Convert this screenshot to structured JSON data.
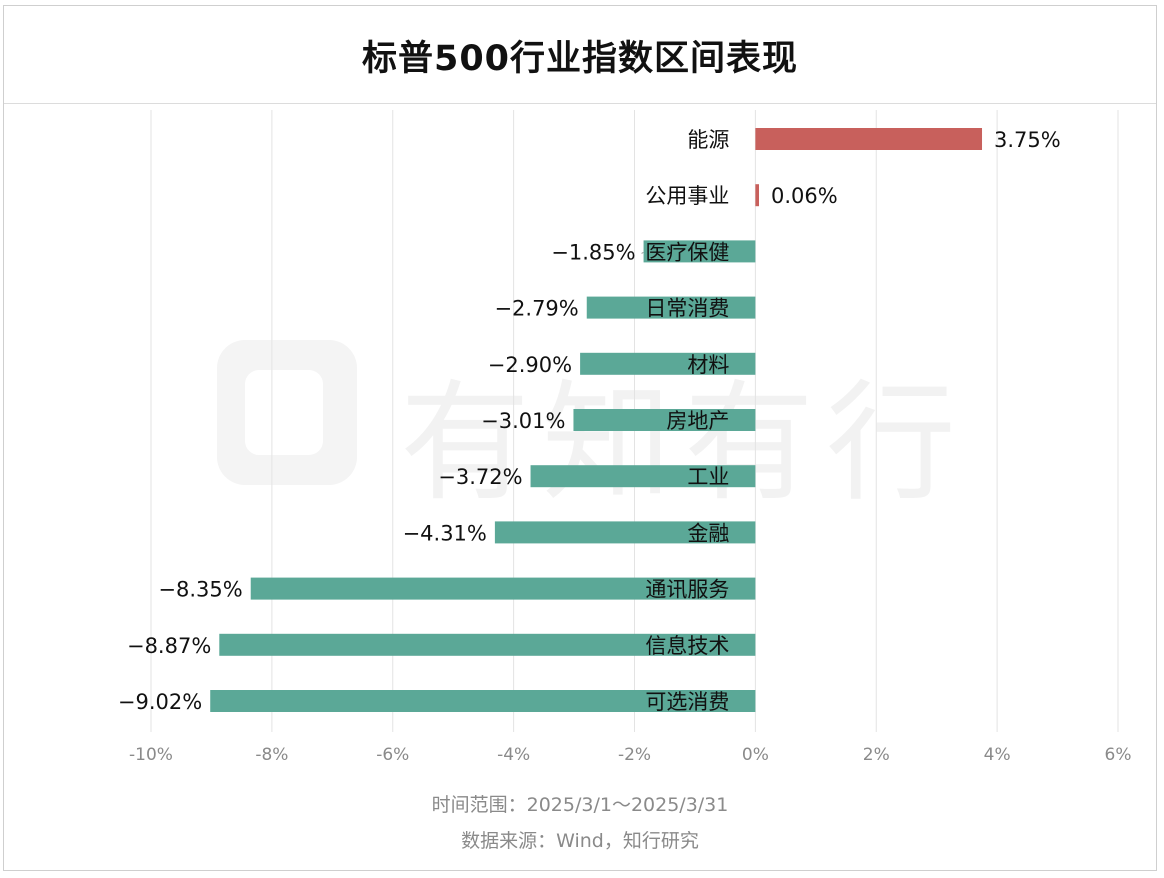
{
  "chart_data": {
    "type": "bar",
    "orientation": "horizontal",
    "title": "标普500行业指数区间表现",
    "categories": [
      "能源",
      "公用事业",
      "医疗保健",
      "日常消费",
      "材料",
      "房地产",
      "工业",
      "金融",
      "通讯服务",
      "信息技术",
      "可选消费"
    ],
    "values": [
      3.75,
      0.06,
      -1.85,
      -2.79,
      -2.9,
      -3.01,
      -3.72,
      -4.31,
      -8.35,
      -8.87,
      -9.02
    ],
    "value_labels": [
      "3.75%",
      "0.06%",
      "−1.85%",
      "−2.79%",
      "−2.90%",
      "−3.01%",
      "−3.72%",
      "−4.31%",
      "−8.35%",
      "−8.87%",
      "−9.02%"
    ],
    "xlim": [
      -10,
      6
    ],
    "xticks": [
      -10,
      -8,
      -6,
      -4,
      -2,
      0,
      2,
      4,
      6
    ],
    "xtick_labels": [
      "-10%",
      "-8%",
      "-6%",
      "-4%",
      "-2%",
      "0%",
      "2%",
      "4%",
      "6%"
    ],
    "grid": "vertical",
    "colors": {
      "positive": "#c8605c",
      "negative": "#5ba897",
      "grid": "#e3e3e3",
      "text": "#111111",
      "tick": "#8a8a8a"
    }
  },
  "footer": {
    "range": "时间范围：2025/3/1～2025/3/31",
    "source": "数据来源：Wind，知行研究"
  },
  "watermark": {
    "text": "有知有行"
  }
}
